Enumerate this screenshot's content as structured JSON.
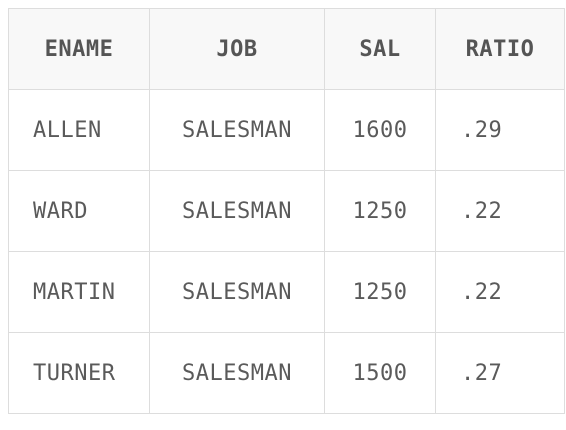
{
  "table": {
    "columns": [
      "ENAME",
      "JOB",
      "SAL",
      "RATIO"
    ],
    "rows": [
      [
        "ALLEN",
        "SALESMAN",
        "1600",
        ".29"
      ],
      [
        "WARD",
        "SALESMAN",
        "1250",
        ".22"
      ],
      [
        "MARTIN",
        "SALESMAN",
        "1250",
        ".22"
      ],
      [
        "TURNER",
        "SALESMAN",
        "1500",
        ".27"
      ]
    ]
  },
  "colors": {
    "border": "#dddddd",
    "header_background": "#f8f8f8",
    "text": "#555555"
  }
}
